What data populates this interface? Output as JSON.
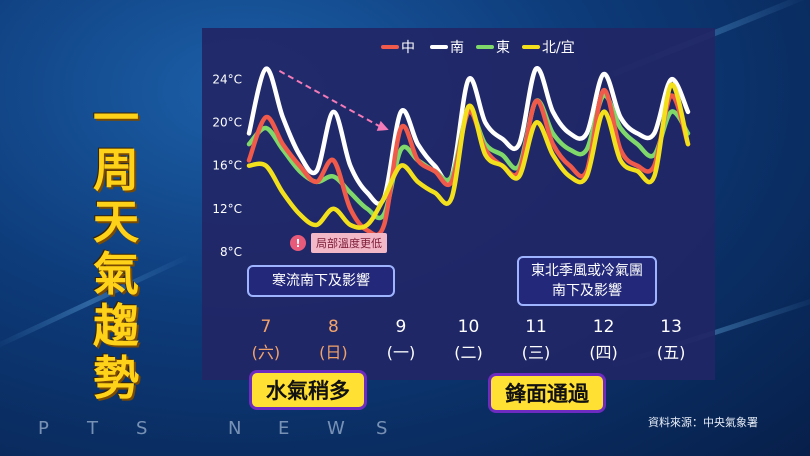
{
  "title": "一周天氣趨勢",
  "chart_data": {
    "type": "line",
    "x": [
      0,
      0.25,
      0.5,
      0.75,
      1,
      1.25,
      1.5,
      1.75,
      2,
      2.25,
      2.5,
      2.75,
      3,
      3.25,
      3.5,
      3.75,
      4,
      4.25,
      4.5,
      4.75,
      5,
      5.25,
      5.5,
      5.75,
      6,
      6.25,
      6.5
    ],
    "day_labels": [
      "7",
      "8",
      "9",
      "10",
      "11",
      "12",
      "13"
    ],
    "weekday_labels": [
      "(六)",
      "(日)",
      "(一)",
      "(二)",
      "(三)",
      "(四)",
      "(五)"
    ],
    "y_ticks": [
      "24°C",
      "20°C",
      "16°C",
      "12°C",
      "8°C"
    ],
    "y_tick_values": [
      24,
      20,
      16,
      12,
      8
    ],
    "ylim": [
      6.5,
      26
    ],
    "series": [
      {
        "name": "中",
        "color": "#f05a4a",
        "values": [
          16.5,
          20.5,
          18,
          16,
          14.5,
          16.5,
          12,
          10,
          10.5,
          19.5,
          16.5,
          15.5,
          14.5,
          21,
          17.5,
          16,
          15.5,
          22,
          18,
          16,
          15.5,
          23,
          17.5,
          16,
          16,
          22.5,
          18
        ]
      },
      {
        "name": "南",
        "color": "#ffffff",
        "values": [
          19,
          25,
          20.5,
          17,
          15.5,
          21,
          16,
          13.5,
          13,
          21,
          18,
          16,
          15,
          24,
          20,
          18.5,
          18,
          25,
          21,
          19,
          19,
          24.5,
          20.5,
          19,
          19,
          24,
          21
        ]
      },
      {
        "name": "東",
        "color": "#7fd86a",
        "values": [
          18,
          19.5,
          17.5,
          15.5,
          14.5,
          15,
          13.5,
          12,
          11.5,
          17.5,
          16.5,
          15.5,
          15,
          21,
          18,
          17,
          16,
          22,
          19,
          17.5,
          17.5,
          22.5,
          19.5,
          18,
          17,
          21,
          19
        ]
      },
      {
        "name": "北/宜",
        "color": "#f3e01c",
        "values": [
          16,
          16,
          13.5,
          11.5,
          10.5,
          12,
          10.5,
          10.5,
          13,
          16,
          14.5,
          13.5,
          13,
          21.5,
          17,
          16,
          15,
          20,
          17,
          15,
          15,
          21,
          16.5,
          15.5,
          15,
          23.5,
          18
        ]
      }
    ]
  },
  "annotations": {
    "local_colder": "局部溫度更低",
    "cold_surge": "寒流南下及影響",
    "monsoon_line1": "東北季風或冷氣團",
    "monsoon_line2": "南下及影響",
    "moist": "水氣稍多",
    "front": "鋒面通過"
  },
  "source": "資料來源：中央氣象署",
  "brand_letters": [
    "P",
    "T",
    "S",
    "N",
    "E",
    "W",
    "S"
  ]
}
